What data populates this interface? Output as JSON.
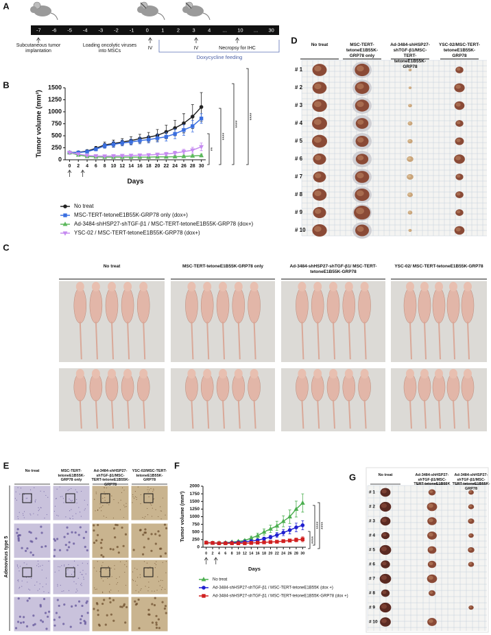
{
  "panel_labels": [
    "A",
    "B",
    "C",
    "D",
    "E",
    "F",
    "G"
  ],
  "timeline": {
    "days": [
      "-7",
      "-6",
      "-5",
      "-4",
      "-3",
      "-2",
      "-1",
      "0",
      "1",
      "2",
      "3",
      "4",
      "...",
      "10",
      "...",
      "30"
    ],
    "annotations": [
      "Subcutaneous tumor implantation",
      "Loading oncolytic viruses into MSCs",
      "IV",
      "IV",
      "Necropsy for IHC"
    ],
    "feeding": "Doxycycline feeding"
  },
  "chart_data": [
    {
      "type": "line",
      "x_label": "Days",
      "y_label": "Tumor volume (mm³)",
      "x": [
        0,
        2,
        4,
        6,
        8,
        10,
        12,
        14,
        16,
        18,
        20,
        22,
        24,
        26,
        28,
        30
      ],
      "xlim": [
        -1,
        31
      ],
      "xticks": [
        0,
        2,
        4,
        6,
        8,
        10,
        12,
        14,
        16,
        18,
        20,
        22,
        24,
        26,
        28,
        30
      ],
      "ylim": [
        0,
        1500
      ],
      "yticks": [
        0,
        250,
        500,
        750,
        1000,
        1250,
        1500
      ],
      "series": [
        {
          "name": "No treat",
          "color": "#222222",
          "marker": "circle",
          "values": [
            150,
            155,
            180,
            240,
            310,
            340,
            370,
            400,
            440,
            470,
            510,
            580,
            660,
            760,
            900,
            1100
          ],
          "errors": [
            15,
            20,
            30,
            40,
            60,
            70,
            70,
            80,
            90,
            100,
            120,
            140,
            160,
            200,
            250,
            300
          ]
        },
        {
          "name": "MSC-TERT-tetoneE1B55K-GRP78 only (dox+)",
          "color": "#3a6fe0",
          "marker": "square",
          "values": [
            150,
            150,
            170,
            220,
            290,
            320,
            350,
            370,
            400,
            420,
            450,
            480,
            540,
            620,
            700,
            860
          ],
          "errors": [
            15,
            15,
            25,
            35,
            50,
            60,
            60,
            60,
            70,
            70,
            80,
            90,
            100,
            110,
            120,
            100
          ]
        },
        {
          "name": "Ad-3484-shHSP27-shTGF-β1 / MSC-TERT-tetoneE1B55K-GRP78 (dox+)",
          "color": "#5cb85c",
          "marker": "triangle-up",
          "values": [
            150,
            100,
            70,
            60,
            55,
            55,
            55,
            55,
            55,
            55,
            60,
            60,
            65,
            70,
            80,
            90
          ],
          "errors": [
            15,
            15,
            10,
            10,
            10,
            10,
            10,
            10,
            10,
            10,
            15,
            15,
            20,
            20,
            25,
            30
          ]
        },
        {
          "name": "YSC-02 / MSC-TERT-tetoneE1B55K-GRP78 (dox+)",
          "color": "#c58af0",
          "marker": "triangle-down",
          "values": [
            150,
            120,
            90,
            80,
            75,
            80,
            85,
            90,
            95,
            100,
            110,
            120,
            140,
            170,
            200,
            270
          ],
          "errors": [
            15,
            15,
            15,
            15,
            15,
            15,
            20,
            20,
            20,
            25,
            30,
            35,
            40,
            50,
            60,
            80
          ]
        }
      ],
      "significance": [
        "**",
        "****",
        "****",
        "****"
      ]
    },
    {
      "type": "line",
      "x_label": "Days",
      "y_label": "Tumor volume (mm³)",
      "x": [
        0,
        2,
        4,
        6,
        8,
        10,
        12,
        14,
        16,
        18,
        20,
        22,
        24,
        26,
        28,
        30
      ],
      "xlim": [
        -1,
        31
      ],
      "xticks": [
        0,
        2,
        4,
        6,
        8,
        10,
        12,
        14,
        16,
        18,
        20,
        22,
        24,
        26,
        28,
        30
      ],
      "ylim": [
        0,
        2000
      ],
      "yticks": [
        0,
        250,
        500,
        750,
        1000,
        1250,
        1500,
        1750,
        2000
      ],
      "series": [
        {
          "name": "No treat",
          "color": "#4caf50",
          "marker": "triangle-up",
          "values": [
            150,
            140,
            140,
            150,
            170,
            190,
            220,
            300,
            380,
            500,
            600,
            700,
            850,
            1000,
            1250,
            1450
          ],
          "errors": [
            15,
            15,
            15,
            20,
            25,
            30,
            40,
            60,
            80,
            100,
            120,
            150,
            180,
            220,
            260,
            300
          ]
        },
        {
          "name": "Ad-3484-shHSP27-shTGF-β1 / MSC-TERT-tetoneE1B55K (dox +)",
          "color": "#2020d0",
          "marker": "circle",
          "values": [
            150,
            140,
            130,
            140,
            150,
            160,
            180,
            200,
            230,
            280,
            330,
            400,
            480,
            560,
            650,
            720
          ],
          "errors": [
            15,
            15,
            15,
            15,
            20,
            20,
            25,
            30,
            40,
            50,
            60,
            80,
            100,
            120,
            140,
            150
          ]
        },
        {
          "name": "Ad-3484-shHSP27-shTGF-β1 / MSC-TERT-tetoneE1B55K-GRP78 (dox +)",
          "color": "#d02020",
          "marker": "square",
          "values": [
            150,
            140,
            130,
            130,
            130,
            130,
            130,
            140,
            150,
            160,
            170,
            180,
            200,
            220,
            240,
            260
          ],
          "errors": [
            15,
            15,
            15,
            15,
            15,
            15,
            15,
            20,
            20,
            25,
            30,
            35,
            40,
            50,
            60,
            80
          ]
        }
      ],
      "significance": [
        "****",
        "****",
        "****"
      ]
    }
  ],
  "panel_c": {
    "columns": [
      "No treat",
      "MSC-TERT-tetoneE1B55K-GRP78 only",
      "Ad-3484-shHSP27-shTGF-β1/ MSC-TERT-tetoneE1B55K-GRP78",
      "YSC-02/ MSC-TERT-tetoneE1B55K-GRP78"
    ]
  },
  "panel_d": {
    "columns": [
      "No treat",
      "MSC-TERT-tetoneE1B55K-GRP78 only",
      "Ad-3484-shHSP27-shTGF-β1/MSC-TERT-tetoneE1B55K-GRP78",
      "YSC-02/MSC-TERT-tetoneE1B55K-GRP78"
    ],
    "rows": [
      "# 1",
      "# 2",
      "# 3",
      "# 4",
      "# 5",
      "# 6",
      "# 7",
      "# 8",
      "# 9",
      "# 10"
    ]
  },
  "panel_e": {
    "columns": [
      "No treat",
      "MSC-TERT-tetoneE1B55K-GRP78 only",
      "Ad-3484-shHSP27-shTGF-β1/MSC-TERT-tetoneE1B55K-GRP78",
      "YSC-02/MSC-TERT-tetoneE1B55K-GRP78"
    ],
    "side_label": "Adenovirus type 5"
  },
  "panel_g": {
    "columns": [
      "No treat",
      "Ad-3484-shHSP27-shTGF-β1/MSC-TERT-tetoneE1B55K",
      "Ad-3484-shHSP27-shTGF-β1/MSC-TERT-tetoneE1B55K-GRP78"
    ],
    "rows": [
      "# 1",
      "# 2",
      "# 3",
      "# 4",
      "# 5",
      "# 6",
      "# 7",
      "# 8",
      "# 9",
      "# 10"
    ]
  }
}
